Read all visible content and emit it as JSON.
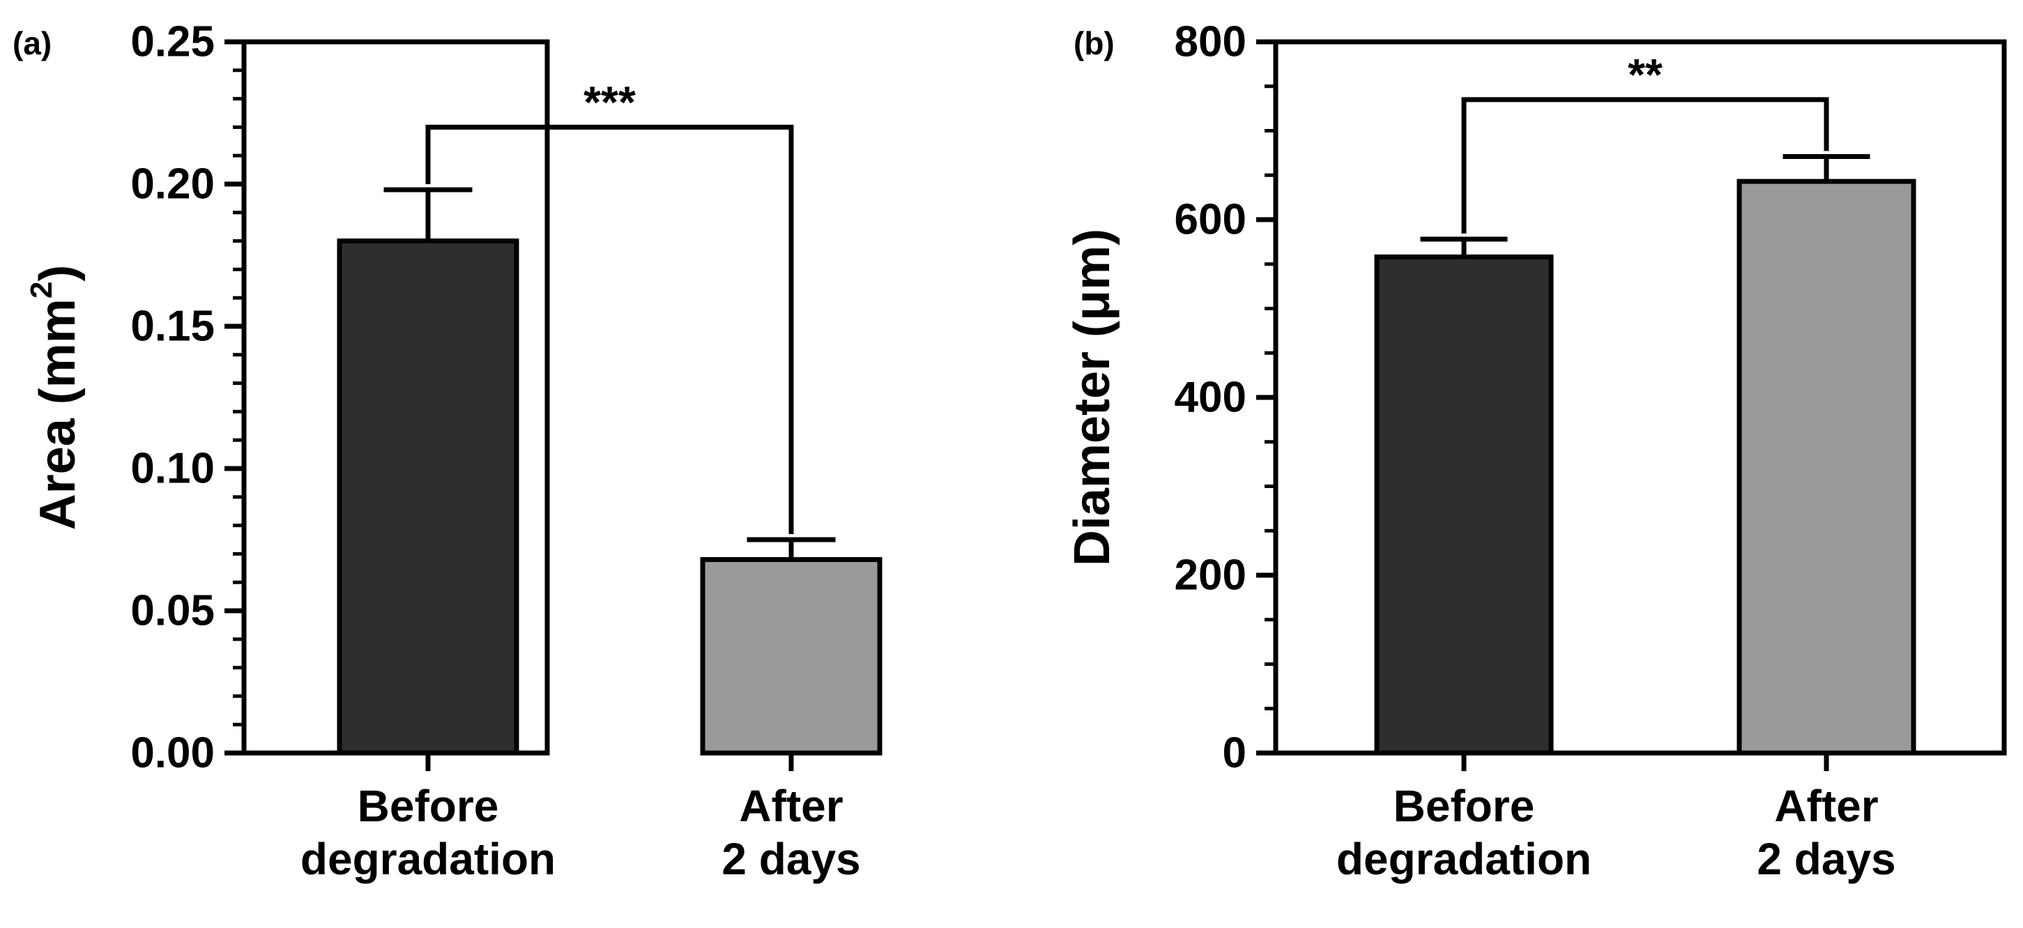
{
  "colors": {
    "before": "#2d2f2c",
    "after": "#9a9a9a",
    "ink": "#000000"
  },
  "chart_data": [
    {
      "type": "bar",
      "panel_label": "(a)",
      "categories": [
        [
          "Before",
          "degradation"
        ],
        [
          "After",
          "2 days"
        ]
      ],
      "values": [
        0.18,
        0.068
      ],
      "errors": [
        0.018,
        0.007
      ],
      "ylabel": {
        "base": "Area (mm",
        "sup": "2",
        "end": ")"
      },
      "ylim": [
        0,
        0.25
      ],
      "ticks": [
        0,
        0.05,
        0.1,
        0.15,
        0.2,
        0.25
      ],
      "tick_labels": [
        "0.00",
        "0.05",
        "0.10",
        "0.15",
        "0.20",
        "0.25"
      ],
      "minor_ticks_per_major": 4,
      "significance": {
        "label": "***",
        "bracket_level": 0.22
      }
    },
    {
      "type": "bar",
      "panel_label": "(b)",
      "categories": [
        [
          "Before",
          "degradation"
        ],
        [
          "After",
          "2 days"
        ]
      ],
      "values": [
        558,
        643
      ],
      "errors": [
        20,
        28
      ],
      "ylabel": {
        "base": "Diameter (μm)",
        "sup": "",
        "end": ""
      },
      "ylim": [
        0,
        800
      ],
      "ticks": [
        0,
        200,
        400,
        600,
        800
      ],
      "tick_labels": [
        "0",
        "200",
        "400",
        "600",
        "800"
      ],
      "minor_ticks_per_major": 3,
      "significance": {
        "label": "**",
        "bracket_level": 735
      }
    }
  ]
}
